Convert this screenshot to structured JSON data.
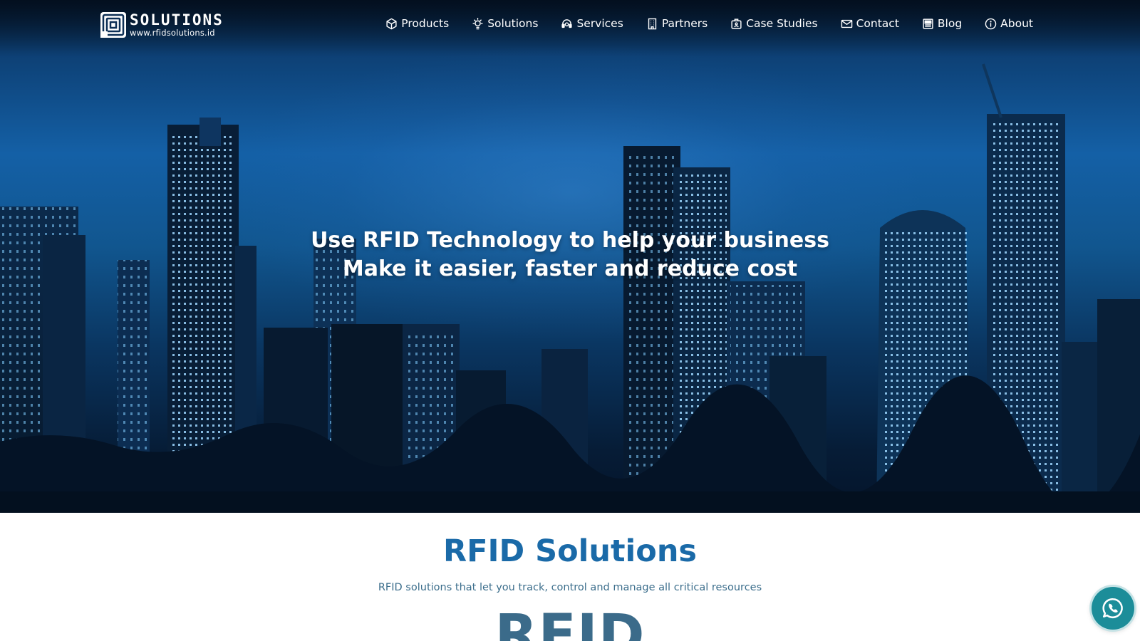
{
  "brand": {
    "name": "SOLUTIONS",
    "url": "www.rfidsolutions.id"
  },
  "nav": {
    "items": [
      {
        "label": "Products",
        "icon": "box-icon"
      },
      {
        "label": "Solutions",
        "icon": "lightbulb-icon"
      },
      {
        "label": "Services",
        "icon": "support-icon"
      },
      {
        "label": "Partners",
        "icon": "building-icon"
      },
      {
        "label": "Case Studies",
        "icon": "briefcase-icon"
      },
      {
        "label": "Contact",
        "icon": "envelope-icon"
      },
      {
        "label": "Blog",
        "icon": "newspaper-icon"
      },
      {
        "label": "About",
        "icon": "info-icon"
      }
    ]
  },
  "hero": {
    "line1": "Use RFID Technology to help your business",
    "line2": "Make it easier, faster and reduce cost"
  },
  "section": {
    "title": "RFID Solutions",
    "subtitle": "RFID solutions that let you track, control and manage all critical resources",
    "big_word": "RFID"
  },
  "whatsapp": {
    "icon": "whatsapp-icon"
  },
  "colors": {
    "accent": "#1a6aa8",
    "hero_blue": "#1460a6",
    "whatsapp": "#1c8d99"
  }
}
